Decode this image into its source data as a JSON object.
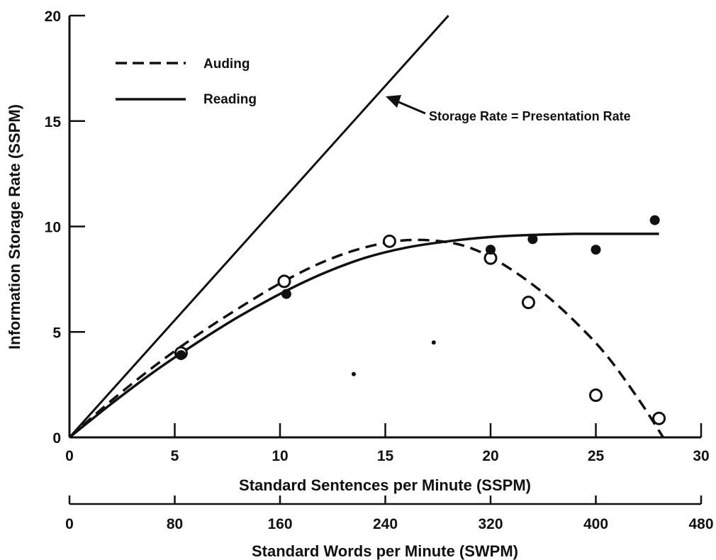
{
  "chart_data": {
    "type": "scatter",
    "title": "",
    "xlabel": "Standard Sentences per Minute (SSPM)",
    "ylabel": "Information Storage Rate (SSPM)",
    "xlim": [
      0,
      30
    ],
    "ylim": [
      0,
      20
    ],
    "x_ticks": [
      "0",
      "5",
      "10",
      "15",
      "20",
      "25",
      "30"
    ],
    "y_ticks": [
      "0",
      "5",
      "10",
      "15",
      "20"
    ],
    "secondary_x_axis": {
      "label": "Standard Words per Minute (SWPM)",
      "xlim": [
        0,
        480
      ],
      "ticks": [
        "0",
        "80",
        "160",
        "240",
        "320",
        "400",
        "480"
      ]
    },
    "grid": false,
    "legend": {
      "position": "top-left",
      "entries": [
        {
          "label": "Auding",
          "style": "dashed"
        },
        {
          "label": "Reading",
          "style": "solid"
        }
      ]
    },
    "annotation": {
      "text": "Storage Rate = Presentation Rate"
    },
    "series": [
      {
        "name": "Auding",
        "marker": "open-circle",
        "points": [
          [
            5.3,
            4.0
          ],
          [
            10.2,
            7.4
          ],
          [
            15.2,
            9.3
          ],
          [
            20.0,
            8.5
          ],
          [
            21.8,
            6.4
          ],
          [
            25.0,
            2.0
          ],
          [
            28.0,
            0.9
          ]
        ],
        "fit_curve": [
          [
            0,
            0
          ],
          [
            2,
            1.75
          ],
          [
            4,
            3.35
          ],
          [
            6,
            4.8
          ],
          [
            8,
            6.1
          ],
          [
            10,
            7.3
          ],
          [
            12,
            8.3
          ],
          [
            14,
            9.0
          ],
          [
            16,
            9.35
          ],
          [
            18,
            9.25
          ],
          [
            19.5,
            8.8
          ],
          [
            21,
            7.95
          ],
          [
            22.5,
            6.85
          ],
          [
            24,
            5.5
          ],
          [
            25.5,
            3.9
          ],
          [
            27,
            1.85
          ],
          [
            28.2,
            0
          ]
        ]
      },
      {
        "name": "Reading",
        "marker": "filled-circle",
        "points": [
          [
            5.3,
            3.9
          ],
          [
            10.3,
            6.8
          ],
          [
            20.0,
            8.9
          ],
          [
            22.0,
            9.4
          ],
          [
            25.0,
            8.9
          ],
          [
            27.8,
            10.3
          ]
        ],
        "fit_curve": [
          [
            0,
            0
          ],
          [
            2,
            1.6
          ],
          [
            4,
            3.1
          ],
          [
            6,
            4.45
          ],
          [
            8,
            5.7
          ],
          [
            10,
            6.8
          ],
          [
            12,
            7.75
          ],
          [
            14,
            8.5
          ],
          [
            16,
            9.0
          ],
          [
            18,
            9.3
          ],
          [
            20,
            9.5
          ],
          [
            22,
            9.6
          ],
          [
            24,
            9.65
          ],
          [
            26,
            9.65
          ],
          [
            28,
            9.65
          ]
        ]
      },
      {
        "name": "Storage Rate = Presentation Rate",
        "style": "solid",
        "line": [
          [
            0,
            0
          ],
          [
            18,
            20
          ]
        ]
      }
    ],
    "stray_marks": [
      [
        13.5,
        3.0
      ],
      [
        17.3,
        4.5
      ]
    ]
  }
}
